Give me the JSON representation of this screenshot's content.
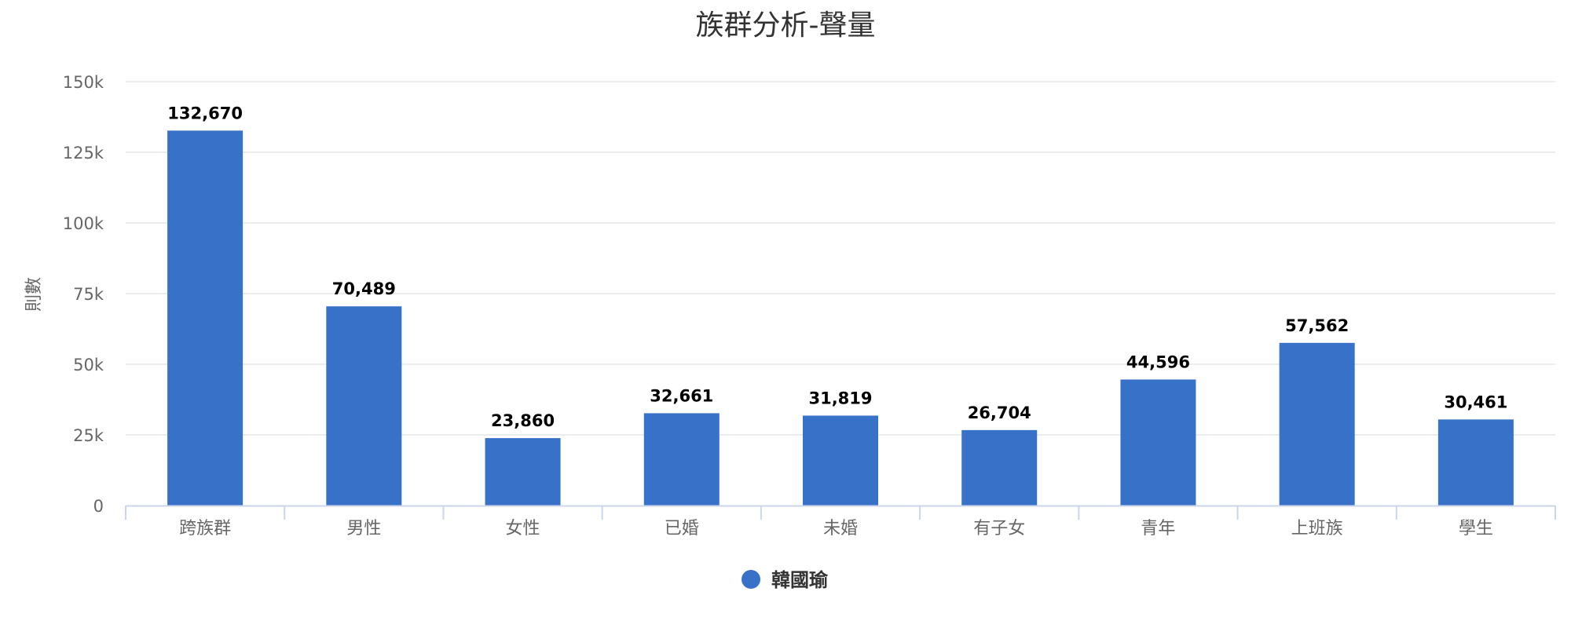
{
  "chart_data": {
    "type": "bar",
    "title": "族群分析-聲量",
    "xlabel": "",
    "ylabel": "則數",
    "categories": [
      "跨族群",
      "男性",
      "女性",
      "已婚",
      "未婚",
      "有子女",
      "青年",
      "上班族",
      "學生"
    ],
    "series": [
      {
        "name": "韓國瑜",
        "values": [
          132670,
          70489,
          23860,
          32661,
          31819,
          26704,
          44596,
          57562,
          30461
        ],
        "labels": [
          "132,670",
          "70,489",
          "23,860",
          "32,661",
          "31,819",
          "26,704",
          "44,596",
          "57,562",
          "30,461"
        ]
      }
    ],
    "ylim": [
      0,
      150000
    ],
    "yticks": [
      0,
      25000,
      50000,
      75000,
      100000,
      125000,
      150000
    ],
    "ytick_labels": [
      "0",
      "25k",
      "50k",
      "75k",
      "100k",
      "125k",
      "150k"
    ],
    "grid": true,
    "legend_position": "bottom-center",
    "colors": {
      "bar": "#3771C8",
      "grid": "#E6E6E6",
      "axis": "#CCD6EB"
    }
  }
}
